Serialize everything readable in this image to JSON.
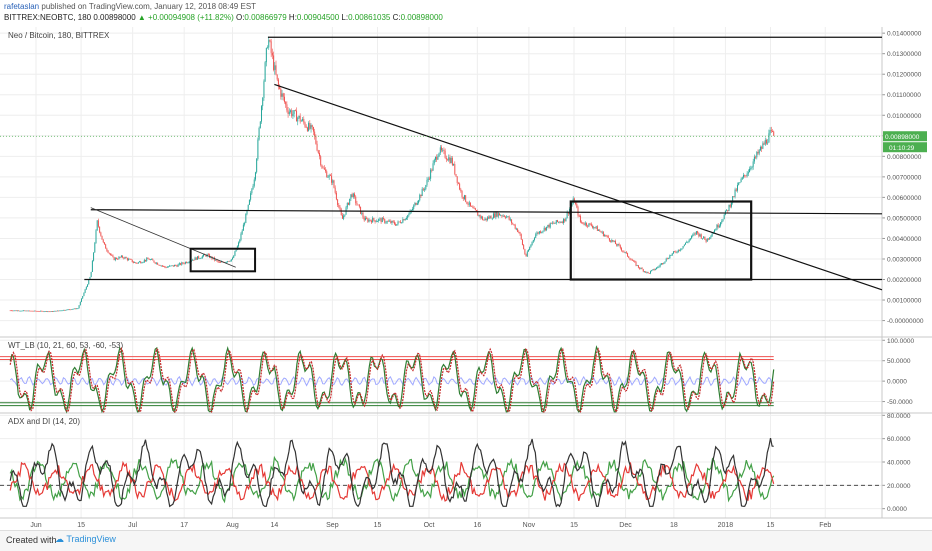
{
  "header": {
    "author": "rafetaslan",
    "published": "published on TradingView.com, January 12, 2018 08:49 EST",
    "symbol": "BITTREX:NEOBTC, 180",
    "last": "0.00898000",
    "change": "+0.00094908 (+11.82%)",
    "o_label": "O:",
    "o": "0.00866979",
    "h_label": "H:",
    "h": "0.00904500",
    "l_label": "L:",
    "l": "0.00861035",
    "c_label": "C:",
    "c": "0.00898000"
  },
  "footer": {
    "created": "Created with",
    "brand": "TradingView"
  },
  "chart_data": [
    {
      "type": "candlestick",
      "title": "Neo / Bitcoin, 180, BITTREX",
      "ylim": [
        -0.0008,
        0.0143
      ],
      "y_ticks": [
        "-0.00000000",
        "0.00100000",
        "0.00200000",
        "0.00300000",
        "0.00400000",
        "0.00500000",
        "0.00600000",
        "0.00700000",
        "0.00800000",
        "0.00900000",
        "0.01000000",
        "0.01100000",
        "0.01200000",
        "0.01300000",
        "0.01400000"
      ],
      "y_tick_values": [
        0,
        0.001,
        0.002,
        0.003,
        0.004,
        0.005,
        0.006,
        0.007,
        0.008,
        0.009,
        0.01,
        0.011,
        0.012,
        0.013,
        0.014
      ],
      "last_price_label": "0.00898000",
      "countdown_label": "01:10:29",
      "x_ticks": [
        "Jun",
        "15",
        "Jul",
        "17",
        "Aug",
        "14",
        "Sep",
        "15",
        "Oct",
        "16",
        "Nov",
        "15",
        "Dec",
        "18",
        "2018",
        "15",
        "Feb"
      ],
      "x_tick_days": [
        0,
        14,
        30,
        46,
        61,
        74,
        92,
        106,
        122,
        137,
        153,
        167,
        183,
        198,
        214,
        228,
        245
      ],
      "close_path": [
        [
          -8,
          0.0005
        ],
        [
          5,
          0.00045
        ],
        [
          13,
          0.0006
        ],
        [
          17,
          0.0022
        ],
        [
          19,
          0.0048
        ],
        [
          21,
          0.0037
        ],
        [
          24,
          0.003
        ],
        [
          27,
          0.0031
        ],
        [
          31,
          0.0028
        ],
        [
          35,
          0.003
        ],
        [
          40,
          0.0026
        ],
        [
          44,
          0.0027
        ],
        [
          49,
          0.003
        ],
        [
          53,
          0.0032
        ],
        [
          57,
          0.0028
        ],
        [
          61,
          0.003
        ],
        [
          63,
          0.0038
        ],
        [
          66,
          0.0056
        ],
        [
          68,
          0.0072
        ],
        [
          70,
          0.0105
        ],
        [
          72,
          0.0138
        ],
        [
          75,
          0.0115
        ],
        [
          78,
          0.0103
        ],
        [
          82,
          0.0098
        ],
        [
          86,
          0.0092
        ],
        [
          89,
          0.0074
        ],
        [
          92,
          0.0068
        ],
        [
          95,
          0.0049
        ],
        [
          98,
          0.0062
        ],
        [
          102,
          0.0049
        ],
        [
          107,
          0.0049
        ],
        [
          112,
          0.0047
        ],
        [
          116,
          0.0052
        ],
        [
          121,
          0.0066
        ],
        [
          125,
          0.0083
        ],
        [
          129,
          0.0078
        ],
        [
          132,
          0.0062
        ],
        [
          135,
          0.0055
        ],
        [
          139,
          0.0049
        ],
        [
          143,
          0.0052
        ],
        [
          146,
          0.0051
        ],
        [
          150,
          0.0043
        ],
        [
          152,
          0.0031
        ],
        [
          155,
          0.0042
        ],
        [
          160,
          0.0047
        ],
        [
          164,
          0.0049
        ],
        [
          167,
          0.0059
        ],
        [
          169,
          0.0048
        ],
        [
          173,
          0.0046
        ],
        [
          177,
          0.0041
        ],
        [
          181,
          0.0036
        ],
        [
          184,
          0.0031
        ],
        [
          187,
          0.0026
        ],
        [
          190,
          0.0023
        ],
        [
          193,
          0.0026
        ],
        [
          197,
          0.0032
        ],
        [
          200,
          0.0035
        ],
        [
          205,
          0.0043
        ],
        [
          208,
          0.0039
        ],
        [
          212,
          0.0047
        ],
        [
          215,
          0.0055
        ],
        [
          218,
          0.0066
        ],
        [
          221,
          0.0073
        ],
        [
          224,
          0.0081
        ],
        [
          226,
          0.0086
        ],
        [
          228,
          0.0091
        ],
        [
          229,
          0.009
        ]
      ],
      "drawings": [
        "trendline",
        "horizontal-line",
        "rectangle"
      ]
    },
    {
      "type": "line",
      "title": "WT_LB (10, 21, 60, 53, -60, -53)",
      "ylim": [
        -78,
        108
      ],
      "y_ticks": [
        "100.0000",
        "50.0000",
        "0.0000",
        "-50.0000"
      ],
      "y_tick_values": [
        100,
        50,
        0,
        -50
      ],
      "levels": [
        60,
        53,
        -60,
        -53
      ],
      "series": []
    },
    {
      "type": "line",
      "title": "ADX and DI (14, 20)",
      "ylim": [
        -8,
        82
      ],
      "y_ticks": [
        "80.0000",
        "60.0000",
        "40.0000",
        "20.0000",
        "0.0000"
      ],
      "y_tick_values": [
        80,
        60,
        40,
        20,
        0
      ],
      "levels": [
        20
      ],
      "series": []
    }
  ],
  "colors": {
    "up": "#26a69a",
    "down": "#ef5350",
    "grid": "#eeeeee",
    "axis": "#555555",
    "wt1": "#2e7d32",
    "wt2": "#c62828",
    "wtfill": "#9fa8ff",
    "adx": "#333333",
    "diplus": "#43a047",
    "diminus": "#e53935",
    "price_tag": "#4caf50"
  }
}
